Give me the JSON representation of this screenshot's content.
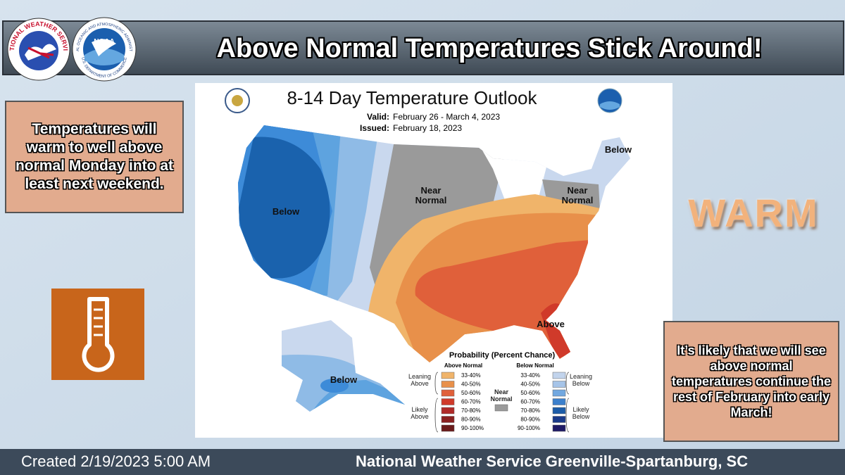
{
  "header": {
    "title": "Above Normal Temperatures Stick Around!",
    "nws_logo": "NATIONAL WEATHER SERVICE",
    "noaa_logo": "NOAA",
    "noaa_ring_top": "NATIONAL OCEANIC AND ATMOSPHERIC ADMINISTRATION",
    "noaa_ring_bottom": "U.S. DEPARTMENT OF COMMERCE"
  },
  "left_note": "Temperatures will warm to well above normal Monday into at least next weekend.",
  "right_label": "WARM",
  "right_note": "It’s likely that we will see above normal temperatures continue the rest of February into early March!",
  "map": {
    "title": "8-14 Day Temperature Outlook",
    "valid_label": "Valid:",
    "valid": "February 26 - March 4, 2023",
    "issued_label": "Issued:",
    "issued": "February 18, 2023",
    "regions": [
      {
        "label": "Below"
      },
      {
        "label": "Near Normal"
      },
      {
        "label": "Below"
      },
      {
        "label": "Near Normal"
      },
      {
        "label": "Above"
      },
      {
        "label": "Below"
      }
    ],
    "legend": {
      "title": "Probability (Percent Chance)",
      "above_heading": "Above Normal",
      "below_heading": "Below Normal",
      "above": [
        {
          "range": "33-40%",
          "color": "#f0b46a"
        },
        {
          "range": "40-50%",
          "color": "#e8904a"
        },
        {
          "range": "50-60%",
          "color": "#e0603a"
        },
        {
          "range": "60-70%",
          "color": "#d03a2a"
        },
        {
          "range": "70-80%",
          "color": "#b02a28"
        },
        {
          "range": "80-90%",
          "color": "#8a2020"
        },
        {
          "range": "90-100%",
          "color": "#6a1a1a"
        }
      ],
      "below": [
        {
          "range": "33-40%",
          "color": "#c2d4ec"
        },
        {
          "range": "40-50%",
          "color": "#a6c4e8"
        },
        {
          "range": "50-60%",
          "color": "#72a8e0"
        },
        {
          "range": "60-70%",
          "color": "#3c80cc"
        },
        {
          "range": "70-80%",
          "color": "#1c5ca8"
        },
        {
          "range": "80-90%",
          "color": "#1a3a8a"
        },
        {
          "range": "90-100%",
          "color": "#1e1a66"
        }
      ],
      "near": {
        "label": "Near Normal",
        "color": "#9a9a9a"
      },
      "groups": {
        "leaning_above": "Leaning Above",
        "likely_above": "Likely Above",
        "leaning_below": "Leaning Below",
        "likely_below": "Likely Below"
      }
    }
  },
  "footer": {
    "created": "Created 2/19/2023 5:00 AM",
    "office": "National Weather Service Greenville-Spartanburg, SC"
  }
}
